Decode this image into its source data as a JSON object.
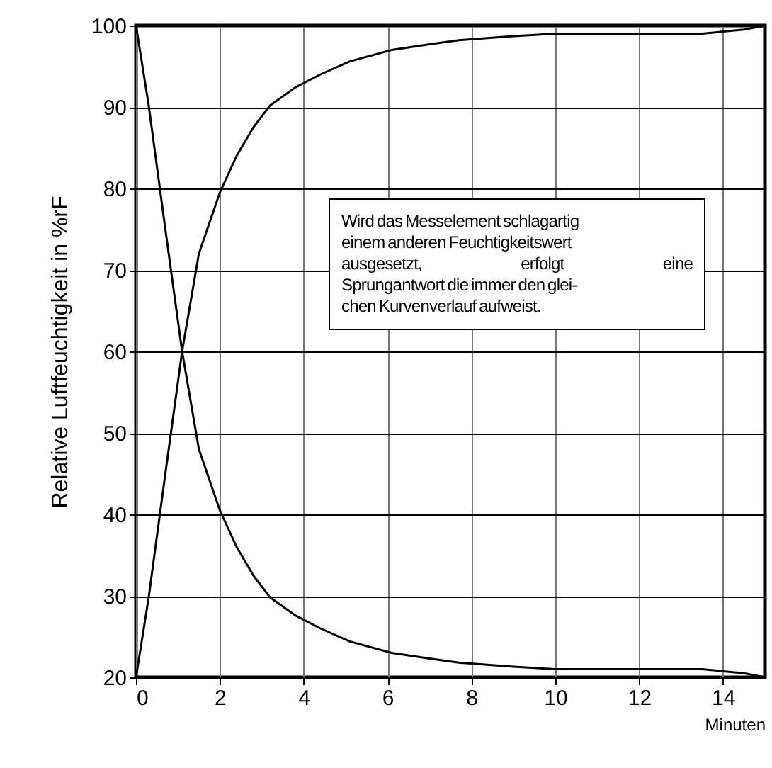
{
  "chart_data": {
    "type": "line",
    "xlabel": "Minuten",
    "ylabel": "Relative Luftfeuchtigkeit in %rF",
    "xlim": [
      0,
      15
    ],
    "ylim": [
      20,
      100
    ],
    "xticks": [
      0,
      2,
      4,
      6,
      8,
      10,
      12,
      14
    ],
    "yticks": [
      20,
      30,
      40,
      50,
      60,
      70,
      80,
      90,
      100
    ],
    "grid": true,
    "marker": "none",
    "line_style": "solid",
    "annotations": [
      "Wird das Messelement schlagartig\neinem anderen Feuchtigkeitswert\nausgesetzt, erfolgt eine\nSprungantwort die immer den glei-\nchen Kurvenverlauf aufweist."
    ],
    "series": [
      {
        "color": "#000000",
        "x": [
          0,
          0.3,
          0.7,
          1.1,
          1.5,
          2,
          2.4,
          2.8,
          3.2,
          3.8,
          4.4,
          5.1,
          6.1,
          7,
          7.7,
          9,
          10,
          11,
          12,
          13.5,
          14.5,
          15
        ],
        "values": [
          20,
          29.7,
          45,
          60,
          72,
          79.5,
          84,
          87.5,
          90.2,
          92.4,
          94,
          95.6,
          97,
          97.7,
          98.2,
          98.7,
          99,
          99,
          99,
          99,
          99.5,
          100
        ]
      },
      {
        "color": "#000000",
        "x": [
          0,
          0.3,
          0.7,
          1.1,
          1.5,
          2,
          2.4,
          2.8,
          3.2,
          3.8,
          4.4,
          5.1,
          6.1,
          7,
          7.7,
          9,
          10,
          11,
          12,
          13.5,
          14.5,
          15
        ],
        "values": [
          100,
          90.3,
          75,
          60,
          48,
          40.5,
          36,
          32.5,
          29.8,
          27.6,
          26,
          24.4,
          23,
          22.3,
          21.8,
          21.3,
          21,
          21,
          21,
          21,
          20.5,
          20
        ]
      }
    ]
  }
}
